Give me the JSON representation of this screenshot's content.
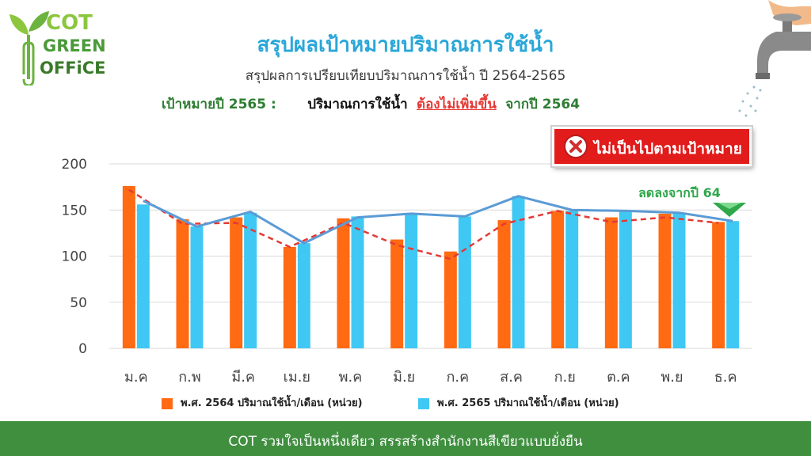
{
  "logo": {
    "line1": "COT",
    "line2": "GREEN",
    "line3": "OFFiCE"
  },
  "header": {
    "title": "สรุปผลเป้าหมายปริมาณการใช้น้ำ",
    "subtitle": "สรุปผลการเปรียบเทียบปริมาณการใช้น้ำ ปี 2564-2565",
    "target_label": "เป้าหมายปี 2565 :",
    "target_text": "ปริมาณการใช้น้ำ",
    "target_emphasis": "ต้องไม่เพิ่มขึ้น",
    "target_suffix": "จากปี 2564"
  },
  "badge": {
    "text": "ไม่เป็นไปตามเป้าหมาย",
    "icon": "x-circle-icon",
    "color": "#e21b1b"
  },
  "annotation": {
    "text": "ลดลงจากปี 64",
    "icon": "triangle-down-icon",
    "color": "#2ea84a"
  },
  "footer": {
    "text": "COT รวมใจเป็นหนึ่งเดียว สรรสร้างสำนักงานสีเขียวแบบยั่งยืน"
  },
  "colors": {
    "series_2564": "#ff6a13",
    "series_2565": "#3fc8f4",
    "trend_2564": "#e53935",
    "trend_2565": "#5b9bd5"
  },
  "chart_data": {
    "type": "bar",
    "categories": [
      "ม.ค",
      "ก.พ",
      "มี.ค",
      "เม.ย",
      "พ.ค",
      "มิ.ย",
      "ก.ค",
      "ส.ค",
      "ก.ย",
      "ต.ค",
      "พ.ย",
      "ธ.ค"
    ],
    "series": [
      {
        "name": "พ.ศ. 2564  ปริมาณใช้น้ำ/เดือน (หน่วย)",
        "values": [
          176,
          140,
          142,
          110,
          141,
          118,
          105,
          139,
          149,
          142,
          146,
          137
        ]
      },
      {
        "name": "พ.ศ. 2565  ปริมาณใช้น้ำ/เดือน (หน่วย)",
        "values": [
          156,
          132,
          147,
          114,
          143,
          146,
          143,
          165,
          149,
          149,
          147,
          138
        ]
      }
    ],
    "ylim": [
      0,
      200
    ],
    "yticks": [
      0,
      50,
      100,
      150,
      200
    ],
    "ytick_labels": [
      "0",
      "50",
      "100",
      "150",
      "200"
    ],
    "trend_lines": [
      {
        "series": "พ.ศ. 2564",
        "style": "dashed",
        "values": [
          172,
          135,
          136,
          110,
          136,
          112,
          97,
          135,
          149,
          137,
          142,
          136
        ]
      },
      {
        "series": "พ.ศ. 2565",
        "style": "solid",
        "values": [
          160,
          132,
          148,
          114,
          142,
          146,
          143,
          165,
          150,
          149,
          147,
          138
        ]
      }
    ],
    "grid": true,
    "legend_position": "bottom"
  }
}
